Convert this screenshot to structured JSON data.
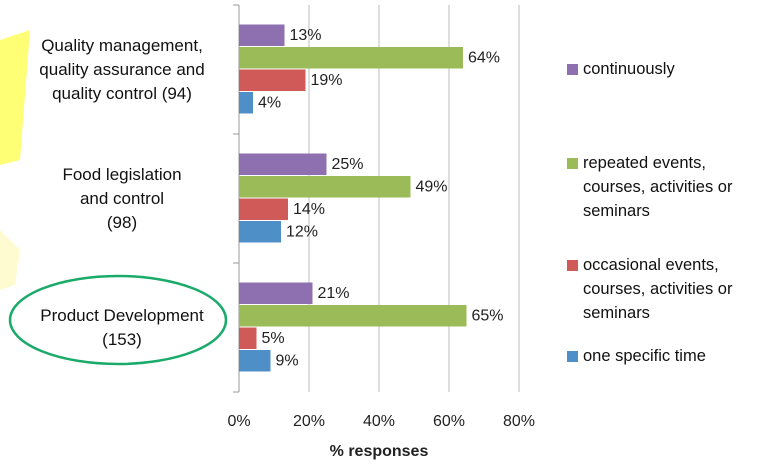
{
  "chart_data": {
    "type": "hbar",
    "x_label": "% responses",
    "categories": [
      "Quality management,\nquality assurance and\nquality control (94)",
      "Food legislation\nand control\n(98)",
      "Product Development\n(153)"
    ],
    "series": [
      {
        "name": "continuously",
        "color": "#8e6fb0",
        "values": [
          13,
          25,
          21
        ],
        "value_labels": [
          "13%",
          "25%",
          "21%"
        ]
      },
      {
        "name": "repeated events,\ncourses, activities or\nseminars",
        "color": "#9bbb59",
        "values": [
          64,
          49,
          65
        ],
        "value_labels": [
          "64%",
          "49%",
          "65%"
        ]
      },
      {
        "name": "occasional events,\ncourses, activities or\nseminars",
        "color": "#d05a57",
        "values": [
          19,
          14,
          5
        ],
        "value_labels": [
          "19%",
          "14%",
          "5%"
        ]
      },
      {
        "name": "one specific time",
        "color": "#4f8fc8",
        "values": [
          4,
          12,
          9
        ],
        "value_labels": [
          "4%",
          "12%",
          "9%"
        ]
      }
    ],
    "xlim": [
      0,
      80
    ],
    "xticks": [
      {
        "value": 0,
        "label": "0%"
      },
      {
        "value": 20,
        "label": "20%"
      },
      {
        "value": 40,
        "label": "40%"
      },
      {
        "value": 60,
        "label": "60%"
      },
      {
        "value": 80,
        "label": "80%"
      }
    ],
    "grid": true
  }
}
